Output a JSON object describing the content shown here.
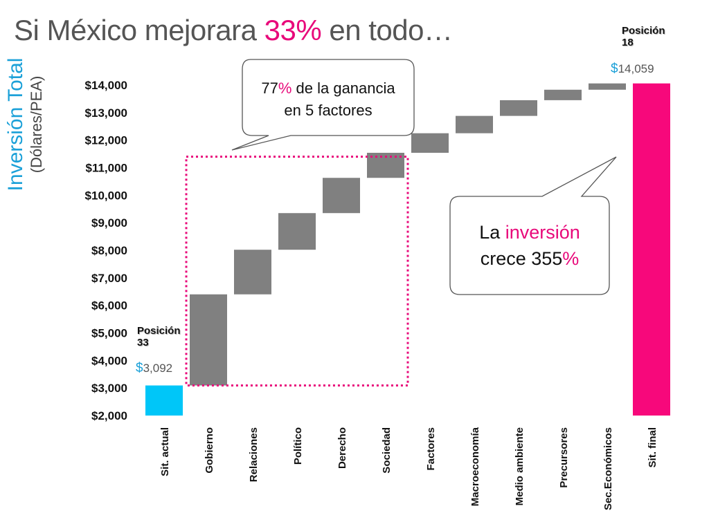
{
  "title": {
    "prefix": "Si México mejorara ",
    "highlight": "33%",
    "suffix": " en todo…"
  },
  "y_axis": {
    "title": "Inversión Total",
    "subtitle": "(Dólares/PEA)"
  },
  "callouts": {
    "top": {
      "value": "77",
      "pct": "%",
      "rest_line1": " de la ganancia",
      "line2": "en 5 factores"
    },
    "right": {
      "prefix": "La ",
      "highlight": "inversión",
      "line2_prefix": "crece 355",
      "pct": "%"
    }
  },
  "annotations": {
    "start": {
      "position": "Posición",
      "position_num": "33",
      "currency": "$",
      "value": "3,092"
    },
    "end": {
      "position": "Posición",
      "position_num": "18",
      "currency": "$",
      "value": "14,059"
    }
  },
  "colors": {
    "start_bar": "#00c6f8",
    "step_bar": "#808080",
    "end_bar": "#f7087b",
    "dotted_box": "#e8097a",
    "accent": "#e8097a",
    "cyan": "#1aa0d8"
  },
  "chart_data": {
    "type": "bar",
    "subtype": "waterfall",
    "categories": [
      "Sit. actual",
      "Gobierno",
      "Relaciones",
      "Político",
      "Derecho",
      "Sociedad",
      "Factores",
      "Macroeconomía",
      "Medio ambiente",
      "Precursores",
      "Sec.Económicos",
      "Sit. final"
    ],
    "bars": [
      {
        "low": 2000,
        "high": 3092,
        "kind": "start"
      },
      {
        "low": 3092,
        "high": 6400,
        "kind": "step"
      },
      {
        "low": 6400,
        "high": 8020,
        "kind": "step"
      },
      {
        "low": 8020,
        "high": 9350,
        "kind": "step"
      },
      {
        "low": 9350,
        "high": 10630,
        "kind": "step"
      },
      {
        "low": 10630,
        "high": 11540,
        "kind": "step"
      },
      {
        "low": 11540,
        "high": 12250,
        "kind": "step"
      },
      {
        "low": 12250,
        "high": 12880,
        "kind": "step"
      },
      {
        "low": 12880,
        "high": 13450,
        "kind": "step"
      },
      {
        "low": 13450,
        "high": 13830,
        "kind": "step"
      },
      {
        "low": 13830,
        "high": 14059,
        "kind": "step"
      },
      {
        "low": 2000,
        "high": 14059,
        "kind": "end"
      }
    ],
    "y_ticks": [
      "$2,000",
      "$3,000",
      "$4,000",
      "$5,000",
      "$6,000",
      "$7,000",
      "$8,000",
      "$9,000",
      "$10,000",
      "$11,000",
      "$12,000",
      "$13,000",
      "$14,000"
    ],
    "ylim": [
      2000,
      14000
    ],
    "highlight_group": {
      "from_category": "Gobierno",
      "to_category": "Sociedad",
      "y_from": 3092,
      "y_to": 11400
    }
  }
}
